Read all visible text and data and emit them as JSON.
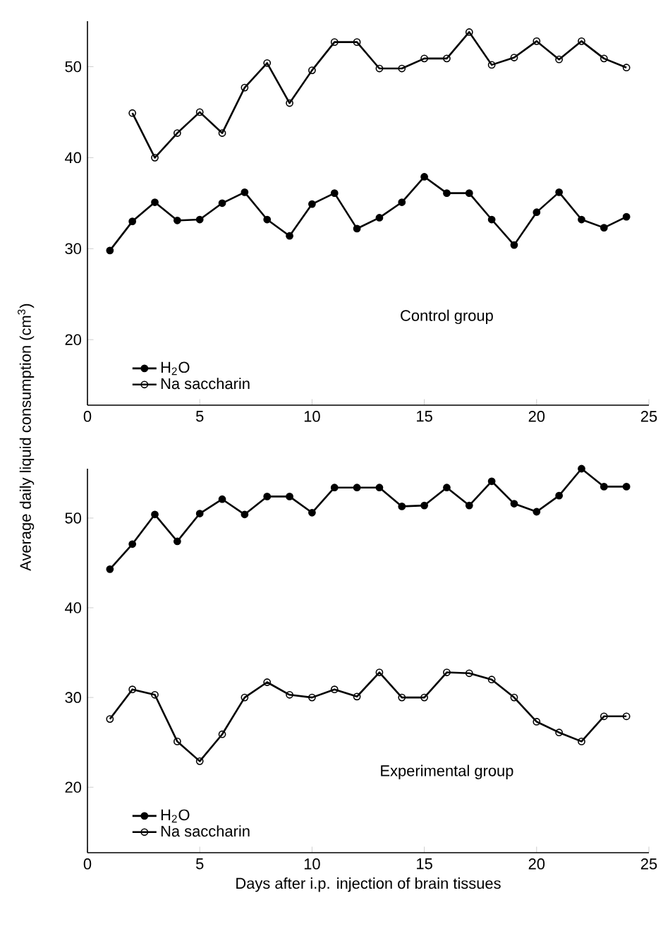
{
  "chart_data": [
    {
      "type": "line",
      "ylabel": "Average daily liquid consumption (cm$^{3}$)",
      "annotations": [
        "Control group"
      ],
      "xlim": [
        0,
        25
      ],
      "xticks": [
        0,
        5,
        10,
        15,
        20,
        25
      ],
      "ylim": [
        12.8,
        55
      ],
      "yticks": [
        20,
        30,
        40,
        50
      ],
      "legend": "bottom left",
      "grid": false,
      "line_style": "solid",
      "series": [
        {
          "name": "H$_{2}$O",
          "color": "#000000",
          "marker": "circle",
          "x": [
            1,
            2,
            3,
            4,
            5,
            6,
            7,
            8,
            9,
            10,
            11,
            12,
            13,
            14,
            15,
            16,
            17,
            18,
            19,
            20,
            21,
            22,
            23,
            24
          ],
          "values": [
            29.8,
            33.0,
            35.1,
            33.1,
            33.2,
            35.0,
            36.2,
            33.2,
            31.4,
            34.9,
            36.1,
            32.2,
            33.4,
            35.1,
            37.9,
            36.1,
            36.1,
            33.2,
            30.4,
            34.0,
            36.2,
            33.2,
            32.3,
            33.5
          ]
        },
        {
          "name": "Na saccharin",
          "color": "#000000",
          "marker": "open circle",
          "x": [
            2,
            3,
            4,
            5,
            6,
            7,
            8,
            9,
            10,
            11,
            12,
            13,
            14,
            15,
            16,
            17,
            18,
            19,
            20,
            21,
            22,
            23,
            24
          ],
          "values": [
            44.9,
            40.0,
            42.7,
            45.0,
            42.7,
            47.7,
            50.4,
            46.0,
            49.6,
            52.7,
            52.7,
            49.8,
            49.8,
            50.9,
            50.9,
            53.8,
            50.2,
            51.0,
            52.8,
            50.8,
            52.8,
            50.9,
            49.9
          ]
        }
      ]
    },
    {
      "type": "line",
      "xlabel": "Days after i.p. injection of brain tissues",
      "annotations": [
        "Experimental group"
      ],
      "xlim": [
        0,
        25
      ],
      "xticks": [
        0,
        5,
        10,
        15,
        20,
        25
      ],
      "ylim": [
        12.7,
        55.5
      ],
      "yticks": [
        20,
        30,
        40,
        50
      ],
      "legend": "bottom left",
      "grid": false,
      "line_style": "solid",
      "series": [
        {
          "name": "H$_{2}$O",
          "color": "#000000",
          "marker": "circle",
          "x": [
            1,
            2,
            3,
            4,
            5,
            6,
            7,
            8,
            9,
            10,
            11,
            12,
            13,
            14,
            15,
            16,
            17,
            18,
            19,
            20,
            21,
            22,
            23,
            24
          ],
          "values": [
            44.3,
            47.1,
            50.4,
            47.4,
            50.5,
            52.1,
            50.4,
            52.4,
            52.4,
            50.6,
            53.4,
            53.4,
            53.4,
            51.3,
            51.4,
            53.4,
            51.4,
            54.1,
            51.6,
            50.7,
            52.5,
            55.5,
            53.5,
            53.5
          ]
        },
        {
          "name": "Na saccharin",
          "color": "#000000",
          "marker": "open circle",
          "x": [
            1,
            2,
            3,
            4,
            5,
            6,
            7,
            8,
            9,
            10,
            11,
            12,
            13,
            14,
            15,
            16,
            17,
            18,
            19,
            20,
            21,
            22,
            23,
            24
          ],
          "values": [
            27.6,
            30.9,
            30.3,
            25.1,
            22.9,
            25.9,
            30.0,
            31.7,
            30.3,
            30.0,
            30.9,
            30.1,
            32.8,
            30.0,
            30.0,
            32.8,
            32.7,
            32.0,
            30.0,
            27.3,
            26.1,
            25.1,
            27.9,
            27.9
          ]
        }
      ]
    }
  ]
}
